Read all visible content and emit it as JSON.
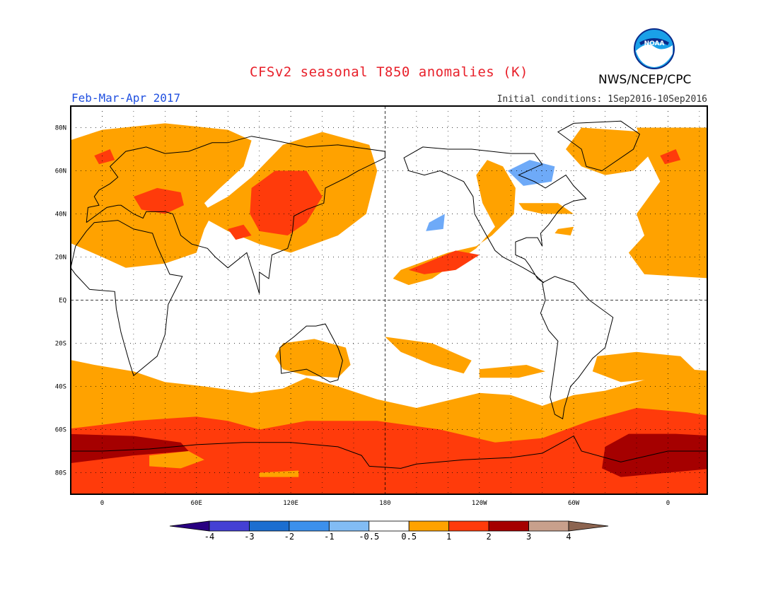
{
  "header": {
    "title": "CFSv2 seasonal T850 anomalies (K)",
    "season": "Feb-Mar-Apr 2017",
    "initial_conditions": "Initial conditions: 1Sep2016-10Sep2016",
    "agency": "NWS/NCEP/CPC",
    "logo_text": "NOAA"
  },
  "map": {
    "lat_labels": [
      "80N",
      "60N",
      "40N",
      "20N",
      "EQ",
      "20S",
      "40S",
      "60S",
      "80S"
    ],
    "lat_values": [
      80,
      60,
      40,
      20,
      0,
      -20,
      -40,
      -60,
      -80
    ],
    "lon_labels": [
      "0",
      "60E",
      "120E",
      "180",
      "120W",
      "60W",
      "0"
    ],
    "lon_values": [
      0,
      60,
      120,
      180,
      240,
      300,
      360
    ],
    "lon_range": [
      -20,
      385
    ],
    "lat_range": [
      -90,
      90
    ],
    "colors": {
      "orange": "#ffa200",
      "red_orange": "#ff3b0b",
      "dark_red": "#a50000",
      "light_blue": "#6eaaf8",
      "coast": "#000000"
    }
  },
  "colorbar": {
    "colors": [
      "#290081",
      "#4440d4",
      "#1c6ed0",
      "#3c90ec",
      "#82bcf4",
      "#ffffff",
      "#ffa200",
      "#ff3b0b",
      "#a50000",
      "#c8a08c",
      "#8c6450"
    ],
    "labels": [
      "-4",
      "-3",
      "-2",
      "-1",
      "-0.5",
      "0.5",
      "1",
      "2",
      "3",
      "4"
    ]
  }
}
